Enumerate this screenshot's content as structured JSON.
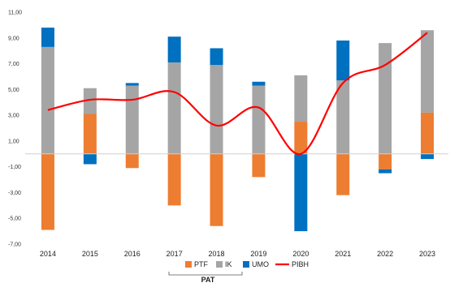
{
  "chart_data": {
    "type": "bar",
    "stacked": true,
    "categories": [
      "2014",
      "2015",
      "2016",
      "2017",
      "2018",
      "2019",
      "2020",
      "2021",
      "2022",
      "2023"
    ],
    "ylim": [
      -7,
      11
    ],
    "yticks": [
      "11,00",
      "9,00",
      "7,00",
      "5,00",
      "3,00",
      "1,00",
      "-1,00",
      "-3,00",
      "-5,00",
      "-7,00"
    ],
    "grid": false,
    "legend_position": "bottom",
    "group_label": "PAT",
    "series": [
      {
        "name": "PTF",
        "kind": "bar",
        "color": "#ED7D31",
        "values": [
          -5.9,
          3.1,
          -1.1,
          -4.0,
          -5.6,
          -1.8,
          2.5,
          -3.2,
          -1.2,
          3.2
        ]
      },
      {
        "name": "IK",
        "kind": "bar",
        "color": "#A5A5A5",
        "values": [
          8.3,
          2.0,
          5.3,
          7.1,
          6.9,
          5.3,
          3.6,
          5.7,
          8.6,
          6.4
        ]
      },
      {
        "name": "UMO",
        "kind": "bar",
        "color": "#0070C0",
        "values": [
          1.5,
          -0.8,
          0.2,
          2.0,
          1.3,
          0.3,
          -6.0,
          3.1,
          -0.3,
          -0.4
        ]
      },
      {
        "name": "PIBH",
        "kind": "line",
        "color": "#FF0000",
        "values": [
          3.4,
          4.2,
          4.2,
          4.8,
          2.2,
          3.6,
          0.0,
          5.5,
          6.9,
          9.4
        ]
      }
    ]
  }
}
